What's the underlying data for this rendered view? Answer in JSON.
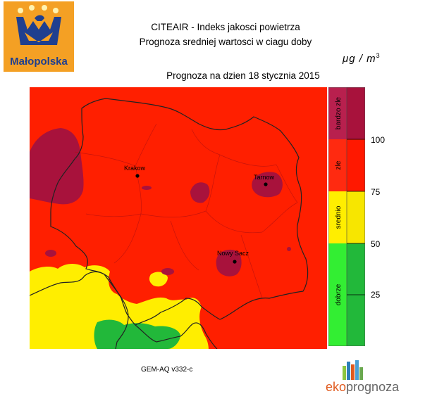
{
  "logo": {
    "text": "Małopolska"
  },
  "header": {
    "title_line1": "CITEAIR - Indeks jakosci powietrza",
    "title_line2": "Prognoza sredniej wartosci w ciagu doby",
    "unit": "μg / m",
    "unit_exp": "3",
    "forecast_date": "Prognoza na dzien  18 stycznia 2015"
  },
  "map": {
    "cities": [
      {
        "name": "Krakow"
      },
      {
        "name": "Tarnow"
      },
      {
        "name": "Nowy Sacz"
      }
    ]
  },
  "legend": {
    "categories": [
      {
        "label": "bardzo zle",
        "color_light": "#b8204e",
        "color_dark": "#a8123c"
      },
      {
        "label": "zle",
        "color_light": "#ff2a10",
        "color_dark": "#ff1800"
      },
      {
        "label": "srednio",
        "color_light": "#ffee00",
        "color_dark": "#f7e600"
      },
      {
        "label": "dobrze",
        "color_light": "#33ee33",
        "color_dark": "#22b83a"
      }
    ],
    "ticks": [
      "100",
      "75",
      "50",
      "25"
    ]
  },
  "colors": {
    "very_bad": "#a8123c",
    "bad": "#ff1f00",
    "medium": "#ffee00",
    "good": "#22b83a"
  },
  "footer": {
    "model": "GEM-AQ v332-c",
    "brand_eko": "eko",
    "brand_rest": "prognoza"
  }
}
